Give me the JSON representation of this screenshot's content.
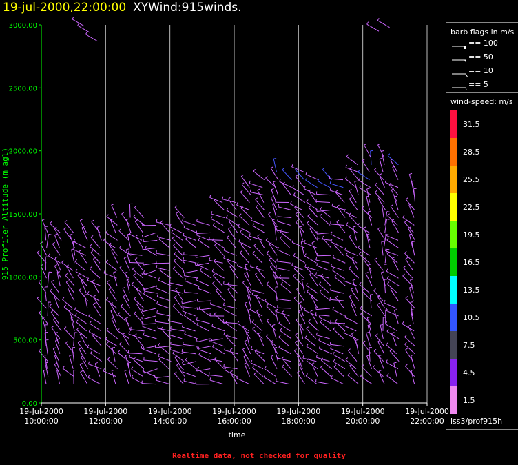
{
  "title": {
    "timestamp": "19-jul-2000,22:00:00",
    "name": "XYWind:915winds."
  },
  "footer": "Realtime data, not checked for quality",
  "legend": {
    "barb_title": "barb flags in m/s",
    "barbs": [
      {
        "label": "== 100",
        "kind": "flag"
      },
      {
        "label": "== 50",
        "kind": "half-flag"
      },
      {
        "label": "== 10",
        "kind": "barb"
      },
      {
        "label": "== 5",
        "kind": "half-barb"
      }
    ],
    "speed_title": "wind-speed: m/s",
    "colorbar": [
      {
        "label": "31.5",
        "color": "#ff1040"
      },
      {
        "label": "28.5",
        "color": "#ff7000"
      },
      {
        "label": "25.5",
        "color": "#ffaa00"
      },
      {
        "label": "22.5",
        "color": "#ffff00"
      },
      {
        "label": "19.5",
        "color": "#66ff00"
      },
      {
        "label": "16.5",
        "color": "#00cc00"
      },
      {
        "label": "13.5",
        "color": "#00ffff"
      },
      {
        "label": "10.5",
        "color": "#3355ff"
      },
      {
        "label": "7.5",
        "color": "#444455"
      },
      {
        "label": "4.5",
        "color": "#8822ee"
      },
      {
        "label": "1.5",
        "color": "#ee88ee"
      }
    ],
    "station": "iss3/prof915h"
  },
  "chart_data": {
    "type": "scatter",
    "title": "XYWind:915winds.",
    "xlabel": "time",
    "ylabel": "915 Profiler Altitude (m agl)",
    "ylim": [
      0,
      3000
    ],
    "xlim": [
      "19-Jul-2000 10:00:00",
      "19-Jul-2000 22:00:00"
    ],
    "yticks": [
      "0.00",
      "500.00",
      "1000.00",
      "1500.00",
      "2000.00",
      "2500.00",
      "3000.00"
    ],
    "xticks": [
      {
        "date": "19-Jul-2000",
        "time": "10:00:00"
      },
      {
        "date": "19-Jul-2000",
        "time": "12:00:00"
      },
      {
        "date": "19-Jul-2000",
        "time": "14:00:00"
      },
      {
        "date": "19-Jul-2000",
        "time": "16:00:00"
      },
      {
        "date": "19-Jul-2000",
        "time": "18:00:00"
      },
      {
        "date": "19-Jul-2000",
        "time": "20:00:00"
      },
      {
        "date": "19-Jul-2000",
        "time": "22:00:00"
      }
    ],
    "grid": "vertical",
    "axis_color": "#00ff00",
    "barb_color": "#cc66ff",
    "profiles": [
      {
        "time": "10:10",
        "top": 1400,
        "dir": 340
      },
      {
        "time": "10:35",
        "top": 1400,
        "dir": 330
      },
      {
        "time": "11:00",
        "top": 1400,
        "dir": 335
      },
      {
        "time": "11:25",
        "top": 1400,
        "dir": 320
      },
      {
        "time": "11:50",
        "top": 1400,
        "dir": 315
      },
      {
        "time": "12:20",
        "top": 1500,
        "dir": 320
      },
      {
        "time": "12:45",
        "top": 1500,
        "dir": 330
      },
      {
        "time": "13:10",
        "top": 1500,
        "dir": 300
      },
      {
        "time": "13:35",
        "top": 1450,
        "dir": 280
      },
      {
        "time": "14:00",
        "top": 1450,
        "dir": 290
      },
      {
        "time": "14:25",
        "top": 1500,
        "dir": 300
      },
      {
        "time": "14:50",
        "top": 1450,
        "dir": 285
      },
      {
        "time": "15:15",
        "top": 1450,
        "dir": 280
      },
      {
        "time": "15:40",
        "top": 1600,
        "dir": 290
      },
      {
        "time": "16:05",
        "top": 1600,
        "dir": 300
      },
      {
        "time": "16:30",
        "top": 1750,
        "dir": 320
      },
      {
        "time": "16:55",
        "top": 1800,
        "dir": 310
      },
      {
        "time": "17:20",
        "top": 1850,
        "dir": 330
      },
      {
        "time": "17:45",
        "top": 1800,
        "dir": 300
      },
      {
        "time": "18:10",
        "top": 1850,
        "dir": 320
      },
      {
        "time": "18:35",
        "top": 1800,
        "dir": 310
      },
      {
        "time": "19:00",
        "top": 1800,
        "dir": 290
      },
      {
        "time": "19:25",
        "top": 1800,
        "dir": 300
      },
      {
        "time": "19:50",
        "top": 1900,
        "dir": 320
      },
      {
        "time": "20:15",
        "top": 1950,
        "dir": 330
      },
      {
        "time": "20:40",
        "top": 2000,
        "dir": 340
      },
      {
        "time": "21:05",
        "top": 1900,
        "dir": 320
      },
      {
        "time": "21:35",
        "top": 1750,
        "dir": 330
      }
    ],
    "extra_barbs": [
      {
        "time": "11:20",
        "alt": 2990
      },
      {
        "time": "11:30",
        "alt": 2940
      },
      {
        "time": "11:45",
        "alt": 2870
      },
      {
        "time": "20:30",
        "alt": 2950
      },
      {
        "time": "20:50",
        "alt": 2980
      }
    ],
    "min_alt": 150,
    "gate_spacing": 60
  }
}
